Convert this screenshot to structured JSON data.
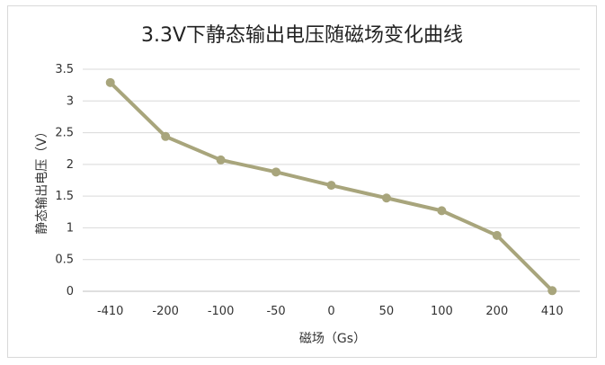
{
  "chart_data": {
    "type": "line",
    "title": "3.3V下静态输出电压随磁场变化曲线",
    "xlabel": "磁场（Gs）",
    "ylabel": "静态输出电压（V）",
    "categories": [
      "-410",
      "-200",
      "-100",
      "-50",
      "0",
      "50",
      "100",
      "200",
      "410"
    ],
    "series": [
      {
        "values": [
          3.29,
          2.44,
          2.07,
          1.88,
          1.67,
          1.47,
          1.27,
          0.88,
          0.01
        ]
      }
    ],
    "ylim": [
      0,
      3.5
    ],
    "yticks": [
      "0",
      "0.5",
      "1",
      "1.5",
      "2",
      "2.5",
      "3",
      "3.5"
    ],
    "grid": true,
    "colors": {
      "series": "#a8a57c",
      "grid": "#d9d9d9",
      "axis": "#bfbfbf"
    }
  }
}
